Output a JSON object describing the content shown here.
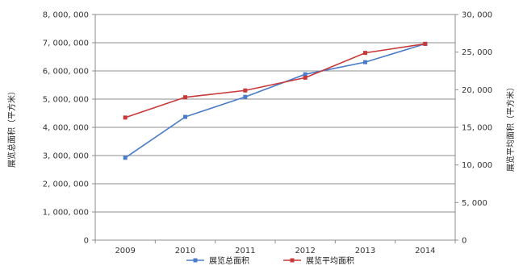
{
  "chart_data": {
    "type": "line",
    "categories": [
      "2009",
      "2010",
      "2011",
      "2012",
      "2013",
      "2014"
    ],
    "series": [
      {
        "name": "展览总面积",
        "axis": "left",
        "color": "#4a7cc9",
        "values": [
          2920000,
          4370000,
          5080000,
          5880000,
          6310000,
          6960000
        ]
      },
      {
        "name": "展览平均面积",
        "axis": "right",
        "color": "#c63a3a",
        "values": [
          16300,
          19000,
          19900,
          21600,
          24900,
          26100
        ]
      }
    ],
    "ylabel_left": "展览总面积（平方米）",
    "ylabel_right": "展览平均面积（平方米）",
    "ylim_left": [
      0,
      8000000
    ],
    "ylim_right": [
      0,
      30000
    ],
    "yticks_left": [
      "0",
      "1, 000, 000",
      "2, 000, 000",
      "3, 000, 000",
      "4, 000, 000",
      "5, 000, 000",
      "6, 000, 000",
      "7, 000, 000",
      "8, 000, 000"
    ],
    "yticks_right": [
      "0",
      "5, 000",
      "10, 000",
      "15, 000",
      "20, 000",
      "25, 000",
      "30, 000"
    ],
    "grid": true,
    "legend_position": "bottom"
  }
}
